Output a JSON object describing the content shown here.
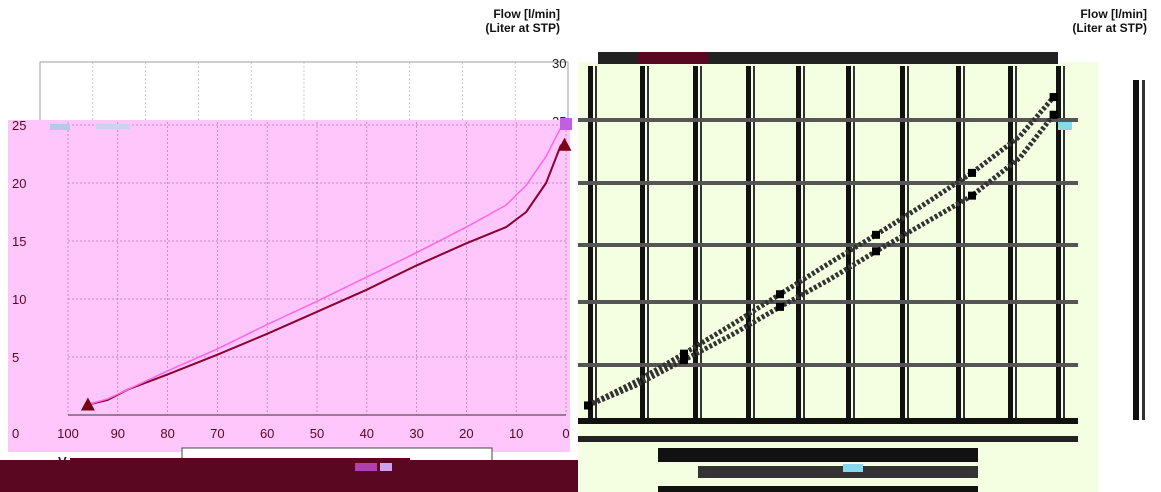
{
  "header": {
    "flow_label": "Flow [l/min]",
    "flow_sub": "(Liter at STP)"
  },
  "colors": {
    "pink_panel": "#ffc6fb",
    "dark_curve": "#8b0030",
    "light_curve": "#ff66e6",
    "right_bg": "#f3ffe0",
    "footer_bar": "#5a0722",
    "marker": "#7a0018",
    "marker_right": "#c060e0"
  },
  "chart_data": [
    {
      "type": "line",
      "title": "",
      "xlabel": "V",
      "ylabel": "",
      "xlim": [
        100,
        0
      ],
      "ylim": [
        0,
        25
      ],
      "x_ticks": [
        "100",
        "90",
        "80",
        "70",
        "60",
        "50",
        "40",
        "30",
        "20",
        "10",
        "0"
      ],
      "y_ticks_left": [
        "0",
        "5",
        "10",
        "15",
        "20",
        "25"
      ],
      "y_ticks_right_visible": [
        "30",
        "25"
      ],
      "series": [
        {
          "color_key": "dark_curve",
          "x": [
            96,
            92,
            88,
            80,
            70,
            60,
            50,
            40,
            30,
            20,
            12,
            8,
            4,
            1
          ],
          "y": [
            0.9,
            1.3,
            2.2,
            3.5,
            5.2,
            7.0,
            8.9,
            10.8,
            12.9,
            14.8,
            16.2,
            17.5,
            20.0,
            23.3
          ]
        },
        {
          "color_key": "light_curve",
          "x": [
            96,
            92,
            88,
            80,
            70,
            60,
            50,
            40,
            30,
            20,
            12,
            8,
            4,
            1
          ],
          "y": [
            0.9,
            1.4,
            2.2,
            3.8,
            5.7,
            7.8,
            9.8,
            11.9,
            14.0,
            16.2,
            18.1,
            19.8,
            22.3,
            24.8
          ]
        }
      ],
      "markers": [
        {
          "x": 96,
          "y": 0.9,
          "shape": "triangle"
        },
        {
          "x": 0.3,
          "y": 23.3,
          "shape": "triangle"
        },
        {
          "x": 0,
          "y": 25,
          "shape": "square"
        }
      ]
    },
    {
      "type": "line",
      "title": "",
      "xlabel": "",
      "ylabel": "",
      "xlim": [
        100,
        0
      ],
      "ylim": [
        0,
        25
      ],
      "series": [
        {
          "x": [
            100,
            90,
            80,
            70,
            60,
            50,
            40,
            30,
            20,
            10,
            3
          ],
          "y": [
            0.2,
            1.8,
            3.8,
            5.8,
            8.0,
            10.1,
            12.4,
            14.6,
            16.8,
            19.8,
            23.2
          ]
        },
        {
          "x": [
            100,
            90,
            80,
            70,
            60,
            50,
            40,
            30,
            20,
            10,
            3
          ],
          "y": [
            0.2,
            2.1,
            4.3,
            6.6,
            9.0,
            11.4,
            13.7,
            16.1,
            18.6,
            21.5,
            24.6
          ]
        }
      ]
    }
  ]
}
